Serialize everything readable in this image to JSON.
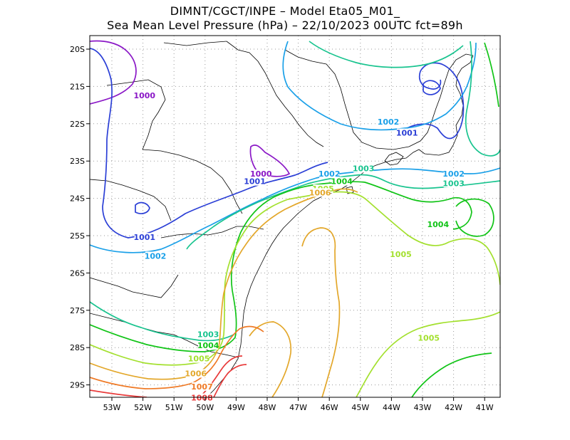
{
  "title_line1": "DIMNT/CGCT/INPE –  Model Eta05_M01_",
  "title_line2": "Sea Mean Level Pressure (hPa) – 22/10/2023 00UTC fct=89h",
  "lat_labels": [
    "20S",
    "21S",
    "22S",
    "23S",
    "24S",
    "25S",
    "26S",
    "27S",
    "28S",
    "29S"
  ],
  "lon_labels": [
    "53W",
    "52W",
    "51W",
    "50W",
    "49W",
    "48W",
    "47W",
    "46W",
    "45W",
    "44W",
    "43W",
    "42W",
    "41W"
  ],
  "contour_colors": {
    "1000": "#8a17c6",
    "1001": "#2b3fd6",
    "1002": "#1aa0e8",
    "1003": "#19c48f",
    "1004": "#11c417",
    "1005": "#a3e02e",
    "1006": "#e3a72a",
    "1007": "#ef7a26",
    "1008": "#e83a3a"
  },
  "contour_labels": [
    {
      "text": "1000",
      "lon": -51.95,
      "lat": -21.3,
      "level": "1000"
    },
    {
      "text": "1000",
      "lon": -48.2,
      "lat": -23.4,
      "level": "1000"
    },
    {
      "text": "1001",
      "lon": -48.4,
      "lat": -23.6,
      "level": "1001"
    },
    {
      "text": "1001",
      "lon": -51.95,
      "lat": -25.1,
      "level": "1001"
    },
    {
      "text": "1001",
      "lon": -43.5,
      "lat": -22.3,
      "level": "1001"
    },
    {
      "text": "1002",
      "lon": -51.6,
      "lat": -25.6,
      "level": "1002"
    },
    {
      "text": "1002",
      "lon": -46.0,
      "lat": -23.4,
      "level": "1002"
    },
    {
      "text": "1002",
      "lon": -44.1,
      "lat": -22.0,
      "level": "1002"
    },
    {
      "text": "1002",
      "lon": -42.0,
      "lat": -23.4,
      "level": "1002"
    },
    {
      "text": "1003",
      "lon": -44.9,
      "lat": -23.25,
      "level": "1003"
    },
    {
      "text": "1003",
      "lon": -42.0,
      "lat": -23.65,
      "level": "1003"
    },
    {
      "text": "1003",
      "lon": -49.9,
      "lat": -27.7,
      "level": "1003"
    },
    {
      "text": "1004",
      "lon": -45.6,
      "lat": -23.6,
      "level": "1004"
    },
    {
      "text": "1004",
      "lon": -42.5,
      "lat": -24.75,
      "level": "1004"
    },
    {
      "text": "1004",
      "lon": -49.9,
      "lat": -28.0,
      "level": "1004"
    },
    {
      "text": "1005",
      "lon": -46.2,
      "lat": -23.8,
      "level": "1005"
    },
    {
      "text": "1005",
      "lon": -43.7,
      "lat": -25.55,
      "level": "1005"
    },
    {
      "text": "1005",
      "lon": -42.8,
      "lat": -27.8,
      "level": "1005"
    },
    {
      "text": "1005",
      "lon": -50.2,
      "lat": -28.35,
      "level": "1005"
    },
    {
      "text": "1006",
      "lon": -46.3,
      "lat": -23.9,
      "level": "1006"
    },
    {
      "text": "1006",
      "lon": -50.3,
      "lat": -28.75,
      "level": "1006"
    },
    {
      "text": "1007",
      "lon": -50.1,
      "lat": -29.1,
      "level": "1007"
    },
    {
      "text": "1008",
      "lon": -50.1,
      "lat": -29.4,
      "level": "1008"
    }
  ]
}
